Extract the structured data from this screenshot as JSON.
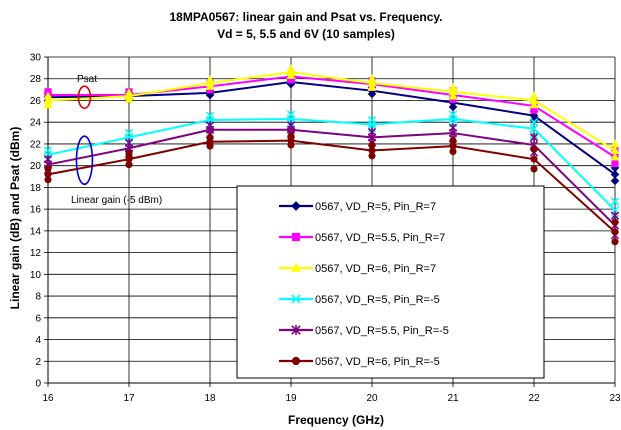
{
  "chart_data": {
    "type": "line",
    "title": "18MPA0567: linear gain and Psat vs. Frequency.",
    "subtitle": "Vd = 5, 5.5 and 6V (10 samples)",
    "xlabel": "Frequency (GHz)",
    "ylabel": "Linear gain (dB) and Psat (dBm)",
    "xlim": [
      16,
      23
    ],
    "ylim": [
      0,
      30
    ],
    "x_ticks": [
      "16",
      "17",
      "18",
      "19",
      "20",
      "21",
      "22",
      "23"
    ],
    "y_ticks": [
      "0",
      "2",
      "4",
      "6",
      "8",
      "10",
      "12",
      "14",
      "16",
      "18",
      "20",
      "22",
      "24",
      "26",
      "28",
      "30"
    ],
    "grid": true,
    "legend_position": "center-right",
    "x": [
      16,
      17,
      18,
      19,
      20,
      21,
      22,
      23
    ],
    "annotations": [
      {
        "text": "Psat",
        "x": 16.45,
        "y": 26.3,
        "color": "#dd0000"
      },
      {
        "text": "Linear gain (-5 dBm)",
        "x": 16.45,
        "y": 20.5,
        "color": "#0000cc"
      }
    ],
    "series": [
      {
        "name": "0567, VD_R=5, Pin_R=7",
        "color": "#000080",
        "marker": "diamond",
        "mean": [
          26.3,
          26.4,
          26.7,
          27.7,
          26.9,
          25.8,
          24.6,
          19.2
        ],
        "spread": [
          0.3,
          0.3,
          0.2,
          0.2,
          0.3,
          0.4,
          0.4,
          0.6
        ]
      },
      {
        "name": "0567, VD_R=5.5, Pin_R=7",
        "color": "#ff00ff",
        "marker": "square",
        "mean": [
          26.5,
          26.5,
          27.3,
          28.2,
          27.5,
          26.5,
          25.5,
          20.8
        ],
        "spread": [
          0.3,
          0.3,
          0.3,
          0.3,
          0.3,
          0.4,
          0.4,
          0.6
        ]
      },
      {
        "name": "0567, VD_R=6, Pin_R=7",
        "color": "#ffff00",
        "marker": "triangle",
        "mean": [
          26.0,
          26.4,
          27.6,
          28.6,
          27.6,
          26.8,
          26.0,
          21.4
        ],
        "spread": [
          0.4,
          0.3,
          0.3,
          0.3,
          0.4,
          0.4,
          0.4,
          0.6
        ]
      },
      {
        "name": "0567, VD_R=5, Pin_R=-5",
        "color": "#00ffff",
        "marker": "x",
        "mean": [
          21.0,
          22.6,
          24.2,
          24.3,
          23.8,
          24.3,
          23.4,
          15.9
        ],
        "spread": [
          0.4,
          0.4,
          0.4,
          0.4,
          0.4,
          0.4,
          0.6,
          0.8
        ]
      },
      {
        "name": "0567, VD_R=5.5, Pin_R=-5",
        "color": "#800080",
        "marker": "star",
        "mean": [
          20.1,
          21.6,
          23.3,
          23.3,
          22.6,
          23.0,
          21.9,
          14.5
        ],
        "spread": [
          0.5,
          0.5,
          0.4,
          0.4,
          0.5,
          0.5,
          0.7,
          0.9
        ]
      },
      {
        "name": "0567, VD_R=6, Pin_R=-5",
        "color": "#800000",
        "marker": "circle",
        "mean": [
          19.2,
          20.6,
          22.2,
          22.3,
          21.4,
          21.8,
          20.6,
          13.9
        ],
        "spread": [
          0.5,
          0.5,
          0.4,
          0.4,
          0.5,
          0.5,
          0.9,
          0.9
        ]
      }
    ]
  }
}
